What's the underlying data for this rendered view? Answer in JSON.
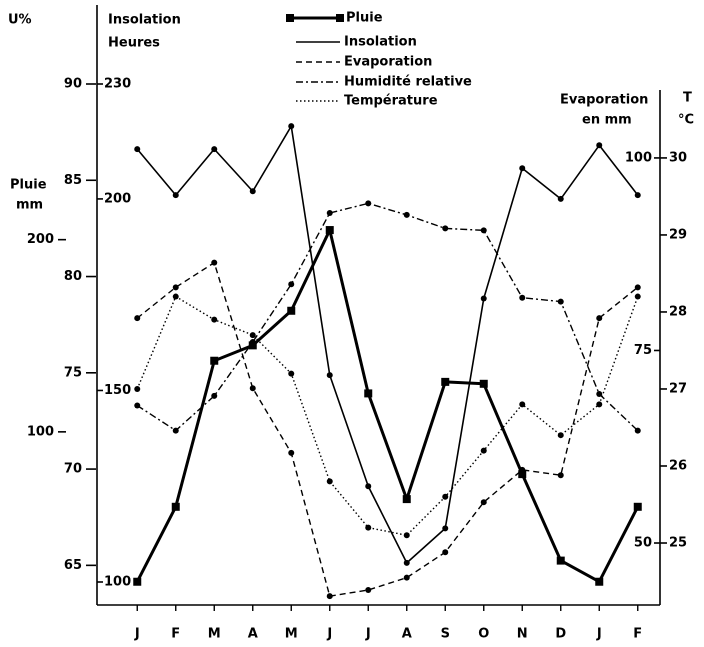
{
  "chart_data": {
    "type": "line",
    "categories": [
      "J",
      "F",
      "M",
      "A",
      "M",
      "J",
      "J",
      "A",
      "S",
      "O",
      "N",
      "D",
      "J",
      "F"
    ],
    "ylabel": "U%",
    "y2label": [
      "Insolation",
      "Heures"
    ],
    "y3label": [
      "Pluie",
      "mm"
    ],
    "y4label": [
      "Evaporation",
      "en mm"
    ],
    "y5label": [
      "T",
      "°C"
    ],
    "ylim": [
      63.2,
      90
    ],
    "yticks": [
      90,
      85,
      80,
      75,
      70,
      65
    ],
    "y2lim": [
      95.3,
      230
    ],
    "y2ticks": [
      230,
      200,
      150,
      100
    ],
    "y3lim": [
      12.5,
      281
    ],
    "y3ticks": [
      200,
      100
    ],
    "y4lim": [
      42.6,
      109.6
    ],
    "y4ticks": [
      100,
      75,
      50
    ],
    "y5lim": [
      24.26,
      30.96
    ],
    "y5ticks": [
      30,
      29,
      28,
      27,
      26,
      25
    ],
    "grid": false,
    "series": [
      {
        "name": "Pluie",
        "axis": "y3",
        "color": "#000000",
        "line_style": "solid",
        "line_width": 3,
        "marker": "square",
        "values": [
          22,
          61,
          137,
          145,
          163,
          205,
          120,
          65,
          126,
          125,
          78,
          33,
          22,
          61
        ]
      },
      {
        "name": "Insolation",
        "axis": "y2",
        "color": "#000000",
        "line_style": "solid",
        "line_width": 1.6,
        "marker": "circle",
        "values": [
          213,
          201,
          213,
          202,
          219,
          154,
          125,
          105,
          114,
          174,
          208,
          200,
          214,
          201
        ]
      },
      {
        "name": "Evaporation",
        "axis": "y4",
        "color": "#000000",
        "line_style": "dashed",
        "line_width": 1.4,
        "marker": "circle",
        "values": [
          79.2,
          83.2,
          86.4,
          70.1,
          61.7,
          43.1,
          43.9,
          45.5,
          48.8,
          55.3,
          59.5,
          58.8,
          79.2,
          83.2
        ]
      },
      {
        "name": "Humidité relative",
        "axis": "y",
        "color": "#000000",
        "line_style": "dashdot",
        "line_width": 1.4,
        "marker": "circle",
        "values": [
          73.3,
          72,
          73.8,
          76.6,
          79.6,
          83.3,
          83.8,
          83.2,
          82.5,
          82.4,
          78.9,
          78.7,
          73.9,
          72
        ]
      },
      {
        "name": "Température",
        "axis": "y5",
        "color": "#000000",
        "line_style": "dotted",
        "line_width": 1.4,
        "marker": "circle",
        "values": [
          27,
          28.2,
          27.9,
          27.7,
          27.2,
          25.8,
          25.2,
          25.1,
          25.6,
          26.2,
          26.8,
          26.4,
          26.8,
          28.2
        ]
      }
    ]
  }
}
